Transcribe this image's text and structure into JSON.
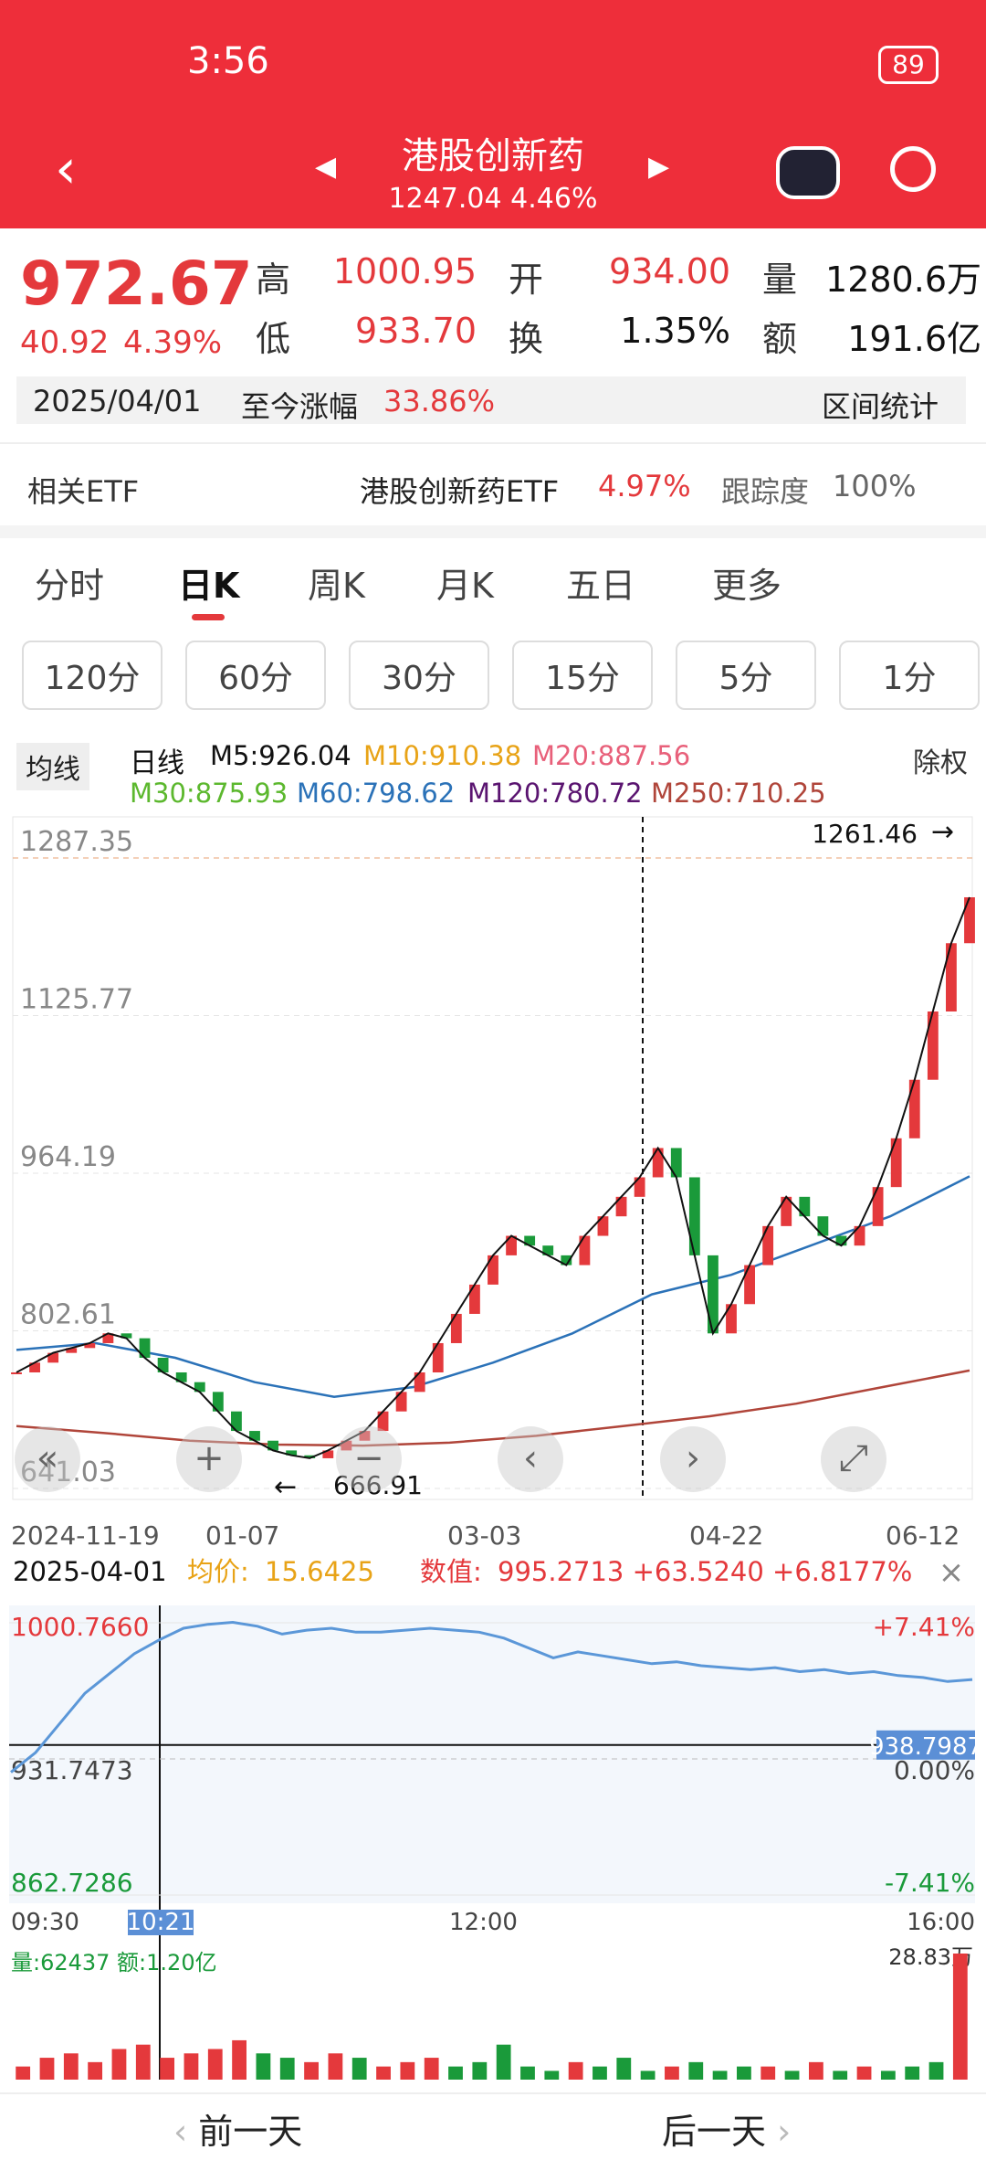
{
  "status": {
    "time": "3:56",
    "battery": "89"
  },
  "header": {
    "title": "港股创新药",
    "subtitle": "1247.04 4.46%"
  },
  "quote": {
    "price": "972.67",
    "change": "40.92",
    "change_pct": "4.39%",
    "stats": [
      {
        "label": "高",
        "value": "1000.95"
      },
      {
        "label": "开",
        "value": "934.00"
      },
      {
        "label": "量",
        "value": "1280.6万"
      },
      {
        "label": "低",
        "value": "933.70"
      },
      {
        "label": "换",
        "value": "1.35%"
      },
      {
        "label": "额",
        "value": "191.6亿"
      }
    ]
  },
  "range_bar": {
    "date": "2025/04/01",
    "label": "至今涨幅",
    "value": "33.86%",
    "button": "区间统计"
  },
  "etf": {
    "label": "相关ETF",
    "name": "港股创新药ETF",
    "pct": "4.97%",
    "track_label": "跟踪度",
    "track": "100%"
  },
  "tabs": [
    "分时",
    "日K",
    "周K",
    "月K",
    "五日",
    "更多"
  ],
  "periods": [
    "120分",
    "60分",
    "30分",
    "15分",
    "5分",
    "1分"
  ],
  "kline": {
    "ma_toggle": "均线",
    "kind": "日线",
    "right": "除权",
    "legends": [
      {
        "text": "M5:926.04",
        "color": "#111111"
      },
      {
        "text": "M10:910.38",
        "color": "#e8a317"
      },
      {
        "text": "M20:887.56",
        "color": "#e8607a"
      },
      {
        "text": "M30:875.93",
        "color": "#5cb82e"
      },
      {
        "text": "M60:798.62",
        "color": "#2b72b8"
      },
      {
        "text": "M120:780.72",
        "color": "#5a1470"
      },
      {
        "text": "M250:710.25",
        "color": "#b0453a"
      }
    ],
    "ylim": [
      629.8,
      1329.5
    ],
    "yticks": [
      1287.35,
      1125.77,
      964.19,
      802.61,
      641.03
    ],
    "date_labels": [
      "2024-11-19",
      "01-07",
      "03-03",
      "04-22",
      "06-12"
    ],
    "high_label": "1261.46",
    "low_label": "666.91",
    "close": [
      760,
      770,
      780,
      785,
      790,
      800,
      795,
      775,
      760,
      750,
      740,
      720,
      700,
      690,
      680,
      675,
      672,
      680,
      690,
      700,
      720,
      740,
      760,
      790,
      820,
      850,
      880,
      900,
      890,
      880,
      870,
      900,
      920,
      940,
      960,
      990,
      960,
      880,
      800,
      830,
      870,
      910,
      940,
      920,
      900,
      890,
      910,
      950,
      1000,
      1060,
      1130,
      1200,
      1247.04
    ],
    "ma60": [
      783,
      790,
      775,
      750,
      735,
      745,
      770,
      800,
      840,
      860,
      890,
      920,
      961
    ],
    "ma250": [
      705,
      698,
      690,
      686,
      685,
      688,
      695,
      705,
      715,
      728,
      745,
      762
    ]
  },
  "intraday": {
    "date": "2025-04-01",
    "avg_label": "均价:",
    "avg": "15.6425",
    "value_label": "数值:",
    "value": "995.2713 +63.5240 +6.8177%",
    "ylim": [
      862.7286,
      1000.766
    ],
    "yticks": [
      {
        "value": 1000.766,
        "label": "1000.7660"
      },
      931.7473,
      862.7286
    ],
    "right_labels": [
      "+7.41%",
      "0.00%",
      "-7.41%"
    ],
    "cursor_price": 938.7987,
    "times": [
      "09:30",
      "10:21",
      "12:00",
      "16:00"
    ],
    "values": [
      925,
      935,
      950,
      965,
      975,
      985,
      992,
      998,
      1000,
      1001,
      999,
      995,
      997,
      998,
      996,
      996,
      997,
      998,
      997,
      996,
      993,
      988,
      983,
      986,
      984,
      982,
      980,
      981,
      979,
      978,
      977,
      978,
      976,
      977,
      975,
      976,
      974,
      973,
      971,
      972
    ],
    "volume_text": "量:62437 额:1.20亿",
    "vol_max": {
      "value": 28.83,
      "label": "28.83万"
    },
    "volumes": [
      3,
      5,
      6,
      4,
      7,
      8,
      5,
      6,
      7,
      9,
      6,
      5,
      4,
      6,
      5,
      3,
      4,
      5,
      3,
      4,
      8,
      3,
      2,
      4,
      3,
      5,
      2,
      3,
      4,
      2,
      3,
      3,
      2,
      4,
      2,
      3,
      2,
      3,
      4,
      28.83
    ]
  },
  "nav": {
    "prev": "前一天",
    "next": "后一天"
  }
}
